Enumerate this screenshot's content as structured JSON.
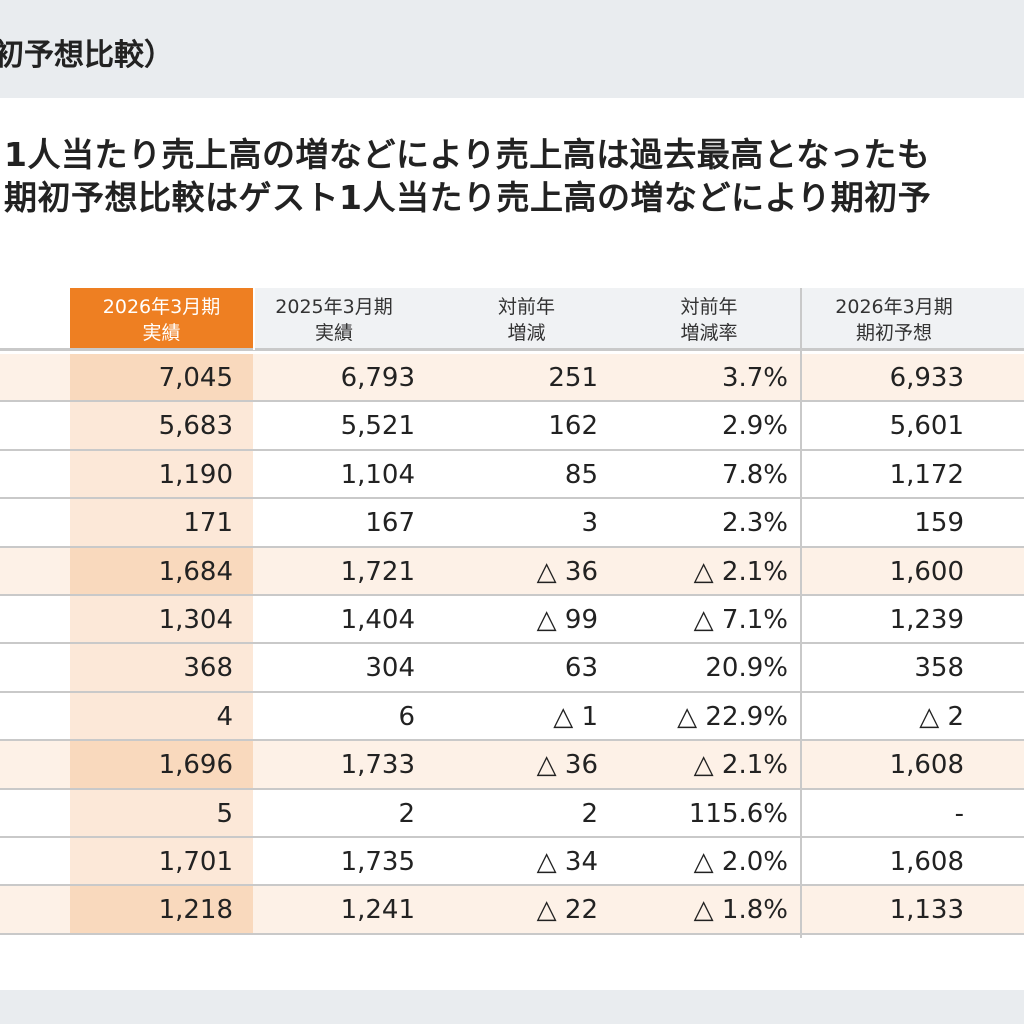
{
  "header": {
    "title": "初予想比較）"
  },
  "summary": {
    "line1": "1人当たり売上高の増などにより売上高は過去最高となったも",
    "line2": "期初予想比較はゲスト1人当たり売上高の増などにより期初予"
  },
  "table": {
    "columns": [
      {
        "line1": "2026年3月期",
        "line2": "実績"
      },
      {
        "line1": "2025年3月期",
        "line2": "実績"
      },
      {
        "line1": "対前年",
        "line2": "増減"
      },
      {
        "line1": "対前年",
        "line2": "増減率"
      },
      {
        "line1": "2026年3月期",
        "line2": "期初予想"
      }
    ],
    "rows": [
      {
        "highlight": true,
        "cells": [
          "7,045",
          "6,793",
          "251",
          "3.7%",
          "6,933"
        ]
      },
      {
        "highlight": false,
        "cells": [
          "5,683",
          "5,521",
          "162",
          "2.9%",
          "5,601"
        ]
      },
      {
        "highlight": false,
        "cells": [
          "1,190",
          "1,104",
          "85",
          "7.8%",
          "1,172"
        ]
      },
      {
        "highlight": false,
        "cells": [
          "171",
          "167",
          "3",
          "2.3%",
          "159"
        ]
      },
      {
        "highlight": true,
        "cells": [
          "1,684",
          "1,721",
          "△ 36",
          "△ 2.1%",
          "1,600"
        ]
      },
      {
        "highlight": false,
        "cells": [
          "1,304",
          "1,404",
          "△ 99",
          "△ 7.1%",
          "1,239"
        ]
      },
      {
        "highlight": false,
        "cells": [
          "368",
          "304",
          "63",
          "20.9%",
          "358"
        ]
      },
      {
        "highlight": false,
        "cells": [
          "4",
          "6",
          "△ 1",
          "△ 22.9%",
          "△ 2"
        ]
      },
      {
        "highlight": true,
        "cells": [
          "1,696",
          "1,733",
          "△ 36",
          "△ 2.1%",
          "1,608"
        ]
      },
      {
        "highlight": false,
        "cells": [
          "5",
          "2",
          "2",
          "115.6%",
          "-"
        ]
      },
      {
        "highlight": false,
        "cells": [
          "1,701",
          "1,735",
          "△ 34",
          "△ 2.0%",
          "1,608"
        ]
      },
      {
        "highlight": true,
        "cells": [
          "1,218",
          "1,241",
          "△ 22",
          "△ 1.8%",
          "1,133"
        ]
      }
    ]
  },
  "colors": {
    "accent": "#ee7f22",
    "highlight_row": "#fdf1e7",
    "current_column": "#f9d9bd"
  }
}
